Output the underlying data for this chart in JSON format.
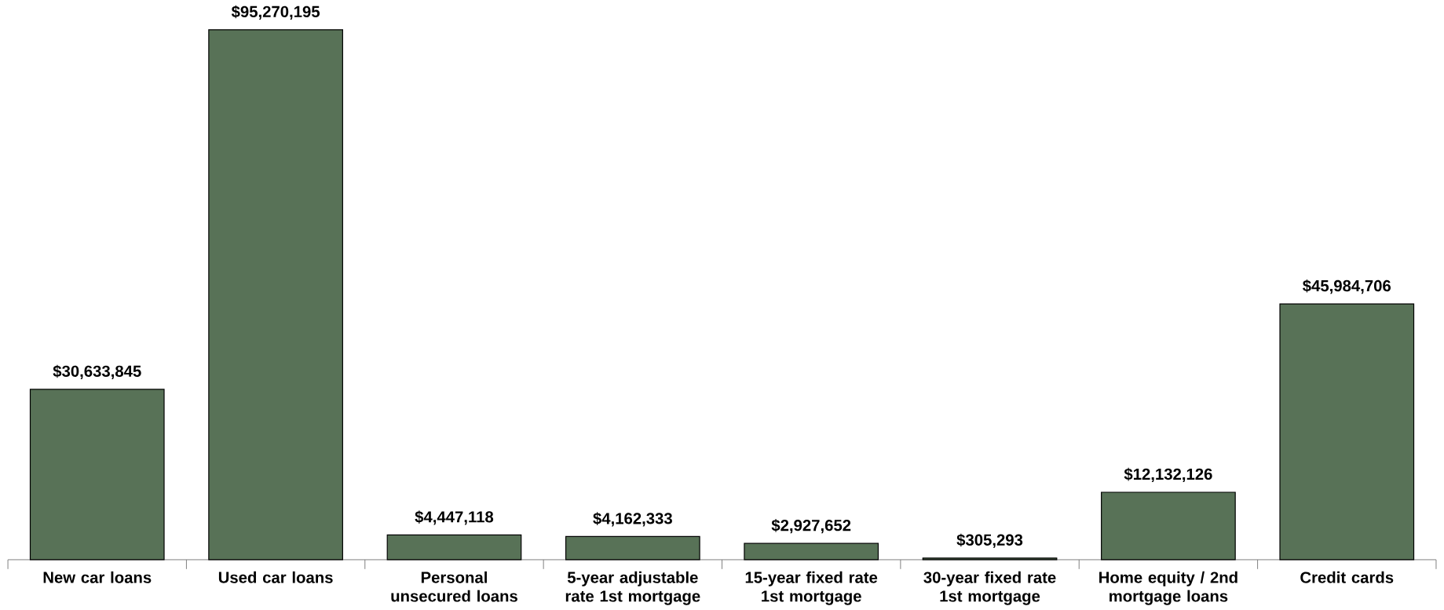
{
  "chart_data": {
    "type": "bar",
    "categories": [
      "New car loans",
      "Used car loans",
      "Personal unsecured loans",
      "5-year adjustable rate 1st mortgage",
      "15-year fixed rate 1st mortgage",
      "30-year fixed rate 1st mortgage",
      "Home equity / 2nd mortgage loans",
      "Credit cards"
    ],
    "values": [
      30633845,
      95270195,
      4447118,
      4162333,
      2927652,
      305293,
      12132126,
      45984706
    ],
    "value_labels": [
      "$30,633,845",
      "$95,270,195",
      "$4,447,118",
      "$4,162,333",
      "$2,927,652",
      "$305,293",
      "$12,132,126",
      "$45,984,706"
    ],
    "color": "#587257",
    "tick_labels": "x"
  }
}
